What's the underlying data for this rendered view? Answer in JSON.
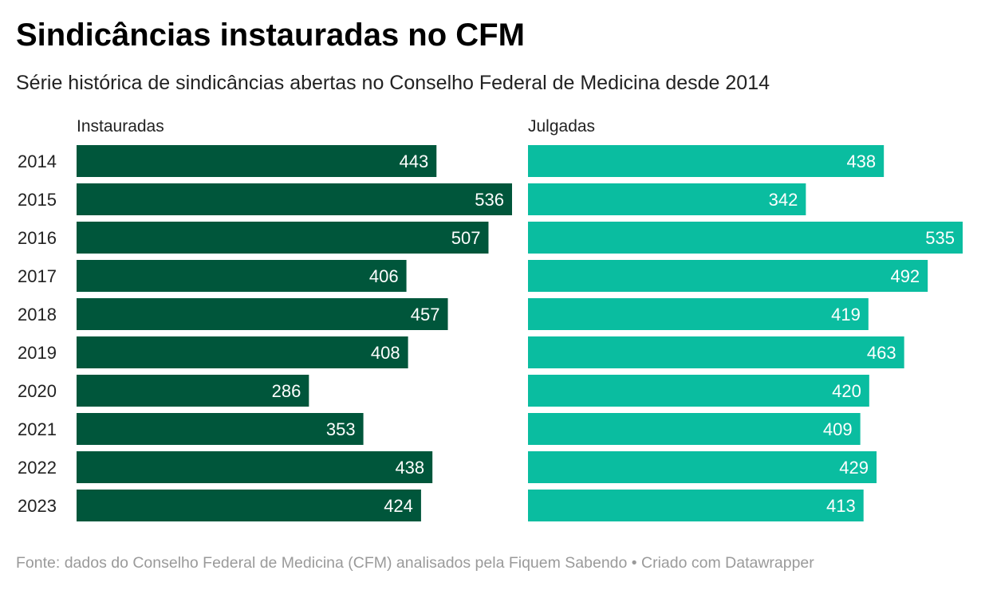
{
  "header": {
    "title": "Sindicâncias instauradas no CFM",
    "subtitle": "Série histórica de sindicâncias abertas no Conselho Federal de Medicina desde 2014"
  },
  "footer": {
    "source": "Fonte: dados do Conselho Federal de Medicina (CFM) analisados pela Fiquem Sabendo • Criado com Datawrapper"
  },
  "chart_data": {
    "type": "bar",
    "orientation": "horizontal",
    "categories": [
      "2014",
      "2015",
      "2016",
      "2017",
      "2018",
      "2019",
      "2020",
      "2021",
      "2022",
      "2023"
    ],
    "series": [
      {
        "name": "Instauradas",
        "color": "#00563b",
        "values": [
          443,
          536,
          507,
          406,
          457,
          408,
          286,
          353,
          438,
          424
        ]
      },
      {
        "name": "Julgadas",
        "color": "#0abda0",
        "values": [
          438,
          342,
          535,
          492,
          419,
          463,
          420,
          409,
          429,
          413
        ]
      }
    ],
    "xlim": [
      0,
      536
    ],
    "value_labels": "inside-end",
    "grid": false
  }
}
